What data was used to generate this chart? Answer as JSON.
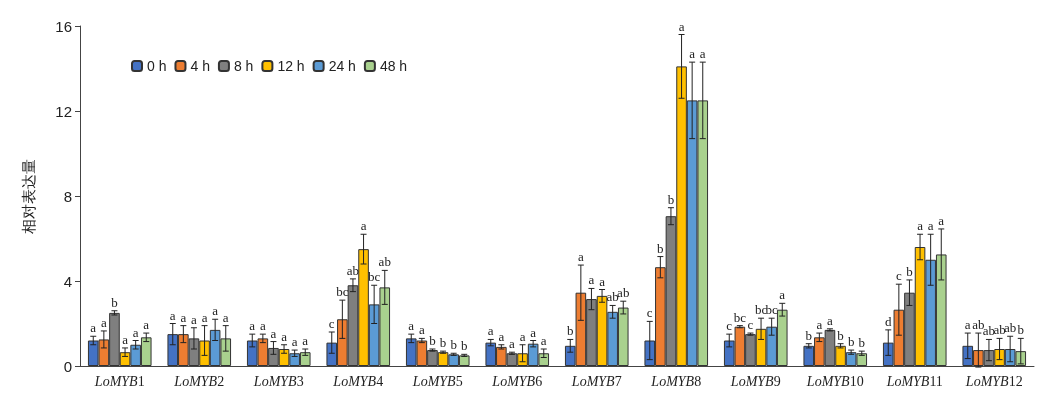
{
  "chart_data": {
    "type": "bar",
    "ylabel": "相对表达量",
    "categories": [
      "LoMYB1",
      "LoMYB2",
      "LoMYB3",
      "LoMYB4",
      "LoMYB5",
      "LoMYB6",
      "LoMYB7",
      "LoMYB8",
      "LoMYB9",
      "LoMYB10",
      "LoMYB11",
      "LoMYB12"
    ],
    "series": [
      {
        "name": "0 h",
        "color": "#4472c4",
        "values": [
          1.2,
          1.5,
          1.2,
          1.1,
          1.3,
          1.1,
          0.95,
          1.2,
          1.2,
          0.95,
          1.1,
          0.95
        ],
        "errors": [
          0.2,
          0.5,
          0.3,
          0.5,
          0.2,
          0.15,
          0.3,
          0.9,
          0.3,
          0.1,
          0.6,
          0.6
        ],
        "value_labels": [
          "a",
          "a",
          "a",
          "c",
          "a",
          "a",
          "b",
          "c",
          "c",
          "b",
          "d",
          "a"
        ]
      },
      {
        "name": "4 h",
        "color": "#ed7d31",
        "values": [
          1.25,
          1.5,
          1.3,
          2.2,
          1.2,
          0.9,
          3.45,
          4.65,
          1.85,
          1.35,
          2.65,
          0.75
        ],
        "errors": [
          0.4,
          0.4,
          0.2,
          0.9,
          0.1,
          0.1,
          1.3,
          0.5,
          0.05,
          0.2,
          1.2,
          0.8
        ],
        "value_labels": [
          "a",
          "a",
          "a",
          "bc",
          "a",
          "a",
          "a",
          "b",
          "bc",
          "a",
          "c",
          "ab"
        ]
      },
      {
        "name": "8 h",
        "color": "#7f7f7f",
        "values": [
          2.5,
          1.3,
          0.85,
          3.8,
          0.75,
          0.6,
          3.15,
          7.05,
          1.5,
          1.7,
          3.45,
          0.75
        ],
        "errors": [
          0.1,
          0.5,
          0.3,
          0.3,
          0.05,
          0.05,
          0.5,
          0.4,
          0.05,
          0.05,
          0.6,
          0.5
        ],
        "value_labels": [
          "b",
          "a",
          "a",
          "ab",
          "b",
          "a",
          "a",
          "b",
          "c",
          "a",
          "b",
          "ab"
        ]
      },
      {
        "name": "12 h",
        "color": "#ffc000",
        "values": [
          0.65,
          1.2,
          0.8,
          5.5,
          0.65,
          0.6,
          3.3,
          14.1,
          1.75,
          0.95,
          5.6,
          0.8
        ],
        "errors": [
          0.2,
          0.7,
          0.2,
          0.7,
          0.05,
          0.4,
          0.3,
          1.5,
          0.5,
          0.1,
          0.6,
          0.5
        ],
        "value_labels": [
          "a",
          "a",
          "a",
          "a",
          "b",
          "a",
          "a",
          "a",
          "bc",
          "b",
          "a",
          "ab"
        ]
      },
      {
        "name": "24 h",
        "color": "#5b9bd5",
        "values": [
          1.0,
          1.7,
          0.6,
          2.9,
          0.55,
          1.05,
          2.55,
          12.5,
          1.85,
          0.65,
          5.0,
          0.8
        ],
        "errors": [
          0.2,
          0.5,
          0.15,
          0.9,
          0.05,
          0.15,
          0.3,
          1.8,
          0.4,
          0.1,
          1.2,
          0.6
        ],
        "value_labels": [
          "a",
          "a",
          "a",
          "bc",
          "b",
          "a",
          "ab",
          "a",
          "bc",
          "b",
          "a",
          "ab"
        ]
      },
      {
        "name": "48 h",
        "color": "#a9d18e",
        "values": [
          1.35,
          1.3,
          0.65,
          3.7,
          0.5,
          0.6,
          2.75,
          12.5,
          2.65,
          0.6,
          5.25,
          0.7
        ],
        "errors": [
          0.2,
          0.6,
          0.15,
          0.8,
          0.05,
          0.2,
          0.3,
          1.8,
          0.3,
          0.1,
          1.2,
          0.6
        ],
        "value_labels": [
          "a",
          "a",
          "a",
          "ab",
          "b",
          "a",
          "ab",
          "a",
          "a",
          "b",
          "a",
          "b"
        ]
      }
    ],
    "ylim": [
      0,
      16
    ],
    "yticks": [
      0,
      4,
      8,
      12,
      16
    ],
    "grid": false,
    "legend": "top left"
  }
}
